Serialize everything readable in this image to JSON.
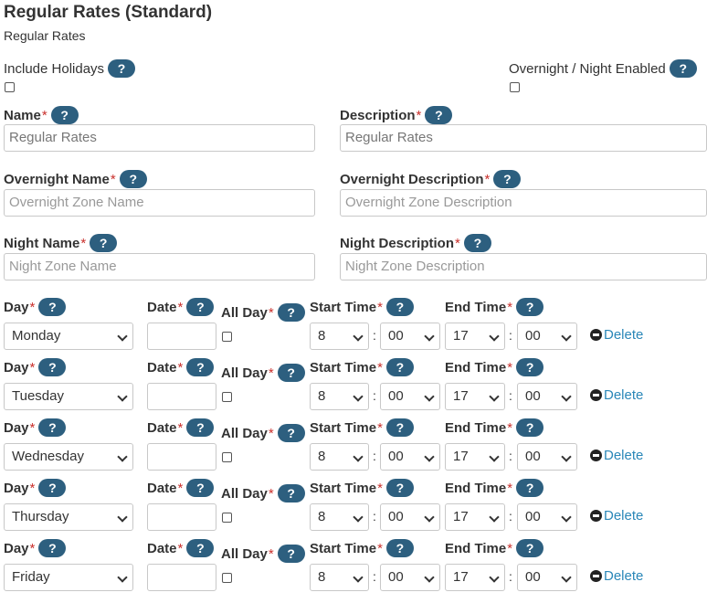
{
  "header": {
    "title": "Regular Rates (Standard)",
    "subtitle": "Regular Rates"
  },
  "help_glyph": "?",
  "required_mark": "*",
  "options": {
    "include_holidays_label": "Include Holidays",
    "overnight_enabled_label": "Overnight / Night Enabled"
  },
  "fields": {
    "name": {
      "label": "Name",
      "value": "Regular Rates"
    },
    "description": {
      "label": "Description",
      "value": "Regular Rates"
    },
    "overnight_name": {
      "label": "Overnight Name",
      "placeholder": "Overnight Zone Name"
    },
    "overnight_description": {
      "label": "Overnight Description",
      "placeholder": "Overnight Zone Description"
    },
    "night_name": {
      "label": "Night Name",
      "placeholder": "Night Zone Name"
    },
    "night_description": {
      "label": "Night Description",
      "placeholder": "Night Zone Description"
    }
  },
  "schedule": {
    "day_label": "Day",
    "date_label": "Date",
    "all_day_label": "All Day",
    "start_time_label": "Start Time",
    "end_time_label": "End Time",
    "delete_label": "Delete",
    "time_separator": ":",
    "rows": [
      {
        "day": "Monday",
        "start_hour": "8",
        "start_min": "00",
        "end_hour": "17",
        "end_min": "00"
      },
      {
        "day": "Tuesday",
        "start_hour": "8",
        "start_min": "00",
        "end_hour": "17",
        "end_min": "00"
      },
      {
        "day": "Wednesday",
        "start_hour": "8",
        "start_min": "00",
        "end_hour": "17",
        "end_min": "00"
      },
      {
        "day": "Thursday",
        "start_hour": "8",
        "start_min": "00",
        "end_hour": "17",
        "end_min": "00"
      },
      {
        "day": "Friday",
        "start_hour": "8",
        "start_min": "00",
        "end_hour": "17",
        "end_min": "00"
      }
    ]
  }
}
